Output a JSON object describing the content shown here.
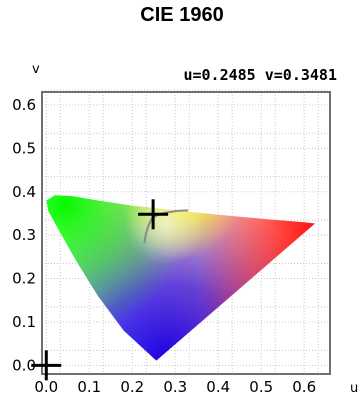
{
  "chart_data": {
    "type": "scatter",
    "title": "CIE 1960",
    "xlabel": "u",
    "ylabel": "v",
    "readout": "u=0.2485 v=0.3481",
    "xlim": [
      -0.01,
      0.66
    ],
    "ylim": [
      -0.02,
      0.63
    ],
    "xticks": [
      "0.0",
      "0.1",
      "0.2",
      "0.3",
      "0.4",
      "0.5",
      "0.6"
    ],
    "yticks": [
      "0.0",
      "0.1",
      "0.2",
      "0.3",
      "0.4",
      "0.5",
      "0.6"
    ],
    "grid": true,
    "gamut_boundary_uv": [
      [
        0.256,
        0.011
      ],
      [
        0.18,
        0.08
      ],
      [
        0.12,
        0.16
      ],
      [
        0.07,
        0.24
      ],
      [
        0.03,
        0.31
      ],
      [
        0.005,
        0.355
      ],
      [
        0.0,
        0.38
      ],
      [
        0.02,
        0.392
      ],
      [
        0.06,
        0.39
      ],
      [
        0.12,
        0.38
      ],
      [
        0.2,
        0.368
      ],
      [
        0.3,
        0.357
      ],
      [
        0.4,
        0.347
      ],
      [
        0.5,
        0.338
      ],
      [
        0.6,
        0.33
      ],
      [
        0.625,
        0.327
      ]
    ],
    "planckian_locus_uv": [
      [
        0.228,
        0.281
      ],
      [
        0.232,
        0.304
      ],
      [
        0.238,
        0.323
      ],
      [
        0.245,
        0.338
      ],
      [
        0.258,
        0.346
      ],
      [
        0.278,
        0.352
      ],
      [
        0.305,
        0.356
      ],
      [
        0.33,
        0.357
      ]
    ],
    "markers": [
      {
        "name": "current",
        "u": 0.2485,
        "v": 0.3481
      },
      {
        "name": "origin",
        "u": 0.0,
        "v": 0.0
      }
    ],
    "colors": {
      "frame": "#6f6f6f",
      "grid": "#c8c8c8",
      "locus": "#8a8a8a",
      "white_point": "#fffde8"
    }
  }
}
